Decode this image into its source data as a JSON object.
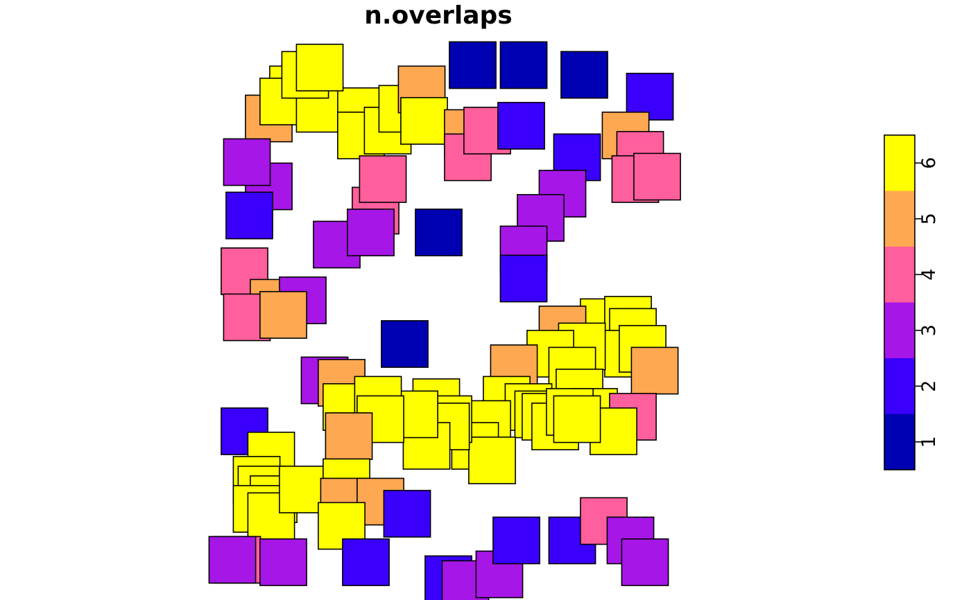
{
  "chart_data": {
    "type": "heatmap",
    "title": "n.overlaps",
    "legend": {
      "placement": "right",
      "ticks": [
        "1",
        "2",
        "3",
        "4",
        "5",
        "6"
      ],
      "bins": [
        {
          "range": [
            0.5,
            1.5
          ],
          "color": "#0000b3"
        },
        {
          "range": [
            1.5,
            2.5
          ],
          "color": "#3a00fc"
        },
        {
          "range": [
            2.5,
            3.5
          ],
          "color": "#a616e6"
        },
        {
          "range": [
            3.5,
            4.5
          ],
          "color": "#ff5f9c"
        },
        {
          "range": [
            4.5,
            5.5
          ],
          "color": "#ffa852"
        },
        {
          "range": [
            5.5,
            6.5
          ],
          "color": "#ffff00"
        }
      ]
    },
    "square_size": 1,
    "xlim": [
      0,
      10
    ],
    "ylim": [
      0,
      10
    ],
    "squares": [
      [
        1.75,
        9.3
      ],
      [
        1.25,
        8.7
      ],
      [
        1.55,
        9.05
      ],
      [
        2.3,
        8.9
      ],
      [
        2.0,
        9.6
      ],
      [
        3.15,
        8.85
      ],
      [
        3.15,
        8.35
      ],
      [
        3.7,
        8.45
      ],
      [
        4.0,
        8.9
      ],
      [
        4.4,
        9.3
      ],
      [
        4.45,
        8.65
      ],
      [
        5.35,
        8.4
      ],
      [
        5.35,
        7.9
      ],
      [
        5.75,
        8.45
      ],
      [
        6.45,
        8.55
      ],
      [
        5.45,
        9.8
      ],
      [
        6.5,
        9.8
      ],
      [
        7.75,
        9.6
      ],
      [
        9.1,
        9.15
      ],
      [
        8.6,
        8.35
      ],
      [
        8.9,
        7.95
      ],
      [
        8.8,
        7.45
      ],
      [
        9.25,
        7.5
      ],
      [
        7.6,
        7.9
      ],
      [
        7.3,
        7.15
      ],
      [
        6.85,
        6.65
      ],
      [
        1.25,
        7.3
      ],
      [
        0.85,
        6.7
      ],
      [
        2.65,
        6.1
      ],
      [
        3.45,
        6.8
      ],
      [
        3.35,
        6.35
      ],
      [
        4.75,
        6.35
      ],
      [
        0.75,
        5.55
      ],
      [
        1.35,
        4.9
      ],
      [
        1.95,
        4.95
      ],
      [
        0.8,
        4.6
      ],
      [
        1.55,
        4.65
      ],
      [
        6.5,
        6.0
      ],
      [
        6.5,
        5.4
      ],
      [
        8.15,
        4.5
      ],
      [
        8.65,
        4.55
      ],
      [
        8.75,
        4.3
      ],
      [
        8.65,
        3.85
      ],
      [
        8.95,
        3.95
      ],
      [
        9.2,
        3.5
      ],
      [
        7.3,
        4.35
      ],
      [
        7.7,
        4.0
      ],
      [
        7.05,
        3.85
      ],
      [
        7.5,
        3.5
      ],
      [
        7.65,
        3.05
      ],
      [
        7.95,
        2.65
      ],
      [
        8.75,
        2.55
      ],
      [
        8.35,
        2.25
      ],
      [
        6.3,
        3.55
      ],
      [
        6.15,
        2.9
      ],
      [
        6.6,
        2.75
      ],
      [
        6.8,
        2.6
      ],
      [
        6.95,
        2.55
      ],
      [
        7.15,
        2.35
      ],
      [
        7.45,
        2.65
      ],
      [
        7.6,
        2.5
      ],
      [
        5.75,
        2.4
      ],
      [
        5.5,
        1.95
      ],
      [
        5.85,
        1.65
      ],
      [
        4.75,
        2.4
      ],
      [
        4.7,
        2.85
      ],
      [
        4.95,
        2.5
      ],
      [
        4.9,
        2.35
      ],
      [
        4.5,
        1.95
      ],
      [
        4.25,
        2.6
      ],
      [
        2.4,
        3.3
      ],
      [
        2.75,
        3.25
      ],
      [
        2.85,
        2.75
      ],
      [
        3.5,
        2.9
      ],
      [
        3.55,
        2.5
      ],
      [
        2.9,
        2.15
      ],
      [
        0.75,
        2.25
      ],
      [
        1.3,
        1.75
      ],
      [
        1.0,
        1.25
      ],
      [
        1.1,
        1.05
      ],
      [
        1.35,
        0.85
      ],
      [
        1.0,
        0.65
      ],
      [
        1.3,
        0.5
      ],
      [
        1.95,
        1.05
      ],
      [
        2.85,
        1.2
      ],
      [
        2.8,
        0.8
      ],
      [
        3.55,
        0.8
      ],
      [
        4.1,
        0.55
      ],
      [
        2.75,
        0.3
      ],
      [
        0.6,
        -0.4
      ],
      [
        1.55,
        -0.45
      ],
      [
        0.5,
        -0.4
      ],
      [
        3.25,
        -0.45
      ],
      [
        4.95,
        -0.8
      ],
      [
        5.3,
        -0.9
      ],
      [
        6.0,
        -0.7
      ],
      [
        6.35,
        0.0
      ],
      [
        7.5,
        0.0
      ],
      [
        8.15,
        0.4
      ],
      [
        8.7,
        0.0
      ],
      [
        9.0,
        -0.45
      ],
      [
        0.8,
        7.8
      ],
      [
        2.3,
        9.75
      ],
      [
        3.6,
        7.45
      ],
      [
        4.05,
        4.05
      ]
    ]
  }
}
